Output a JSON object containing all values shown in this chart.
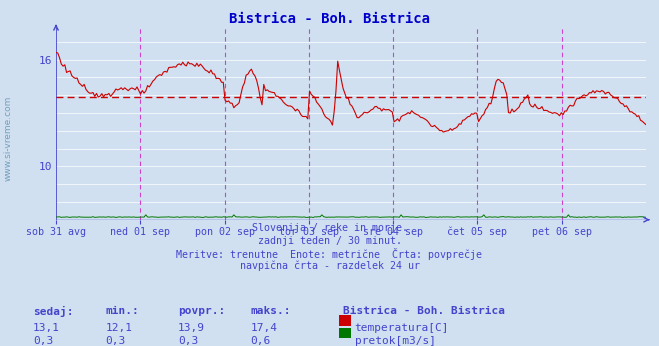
{
  "title": "Bistrica - Boh. Bistrica",
  "title_color": "#0000cc",
  "bg_color": "#d0e0f0",
  "plot_bg_color": "#d0e0f0",
  "grid_color": "#ffffff",
  "axis_color": "#4444cc",
  "text_color": "#4444cc",
  "ylim": [
    7.0,
    17.8
  ],
  "ytick_vals": [
    10,
    16
  ],
  "avg_temp": 13.9,
  "avg_color": "#cc0000",
  "temp_color": "#cc0000",
  "flow_color": "#007700",
  "magenta_line_color": "#cc44cc",
  "subtitle_lines": [
    "Slovenija / reke in morje.",
    "zadnji teden / 30 minut.",
    "Meritve: trenutne  Enote: metrične  Črta: povprečje",
    "navpična črta - razdelek 24 ur"
  ],
  "table_headers": [
    "sedaj:",
    "min.:",
    "povpr.:",
    "maks.:"
  ],
  "table_data": [
    [
      "13,1",
      "12,1",
      "13,9",
      "17,4"
    ],
    [
      "0,3",
      "0,3",
      "0,3",
      "0,6"
    ]
  ],
  "legend_title": "Bistrica - Boh. Bistrica",
  "legend_items": [
    "temperatura[C]",
    "pretok[m3/s]"
  ],
  "legend_colors": [
    "#cc0000",
    "#007700"
  ],
  "xticklabels": [
    "sob 31 avg",
    "ned 01 sep",
    "pon 02 sep",
    "tor 03 sep",
    "sre 04 sep",
    "čet 05 sep",
    "pet 06 sep"
  ],
  "watermark": "www.si-vreme.com"
}
